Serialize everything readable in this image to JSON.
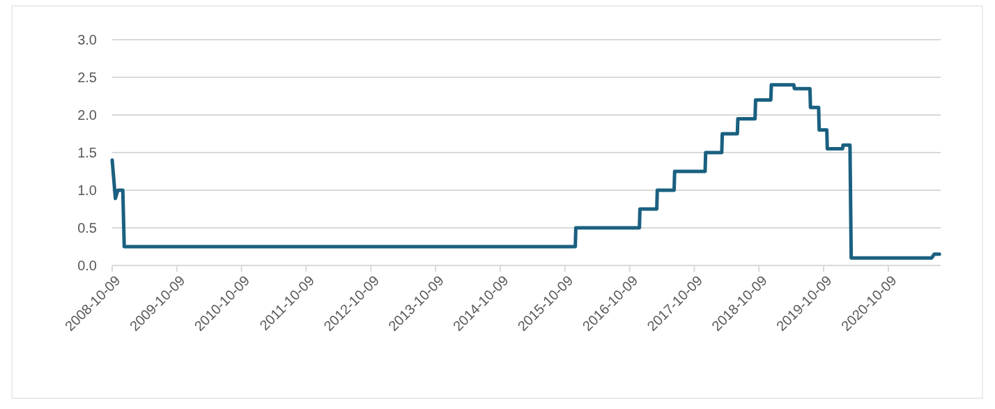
{
  "chart_data": {
    "type": "line",
    "x": [
      "2008-10-09",
      "2008-10-27",
      "2008-11-10",
      "2008-12-08",
      "2008-12-16",
      "2015-12-07",
      "2015-12-10",
      "2016-12-03",
      "2016-12-06",
      "2017-03-11",
      "2017-03-14",
      "2017-06-17",
      "2017-06-20",
      "2017-12-09",
      "2017-12-12",
      "2018-03-13",
      "2018-03-16",
      "2018-06-09",
      "2018-06-12",
      "2018-09-17",
      "2018-09-20",
      "2018-12-15",
      "2018-12-18",
      "2019-04-24",
      "2019-04-27",
      "2019-07-24",
      "2019-07-27",
      "2019-09-11",
      "2019-09-14",
      "2019-10-27",
      "2019-10-30",
      "2020-01-24",
      "2020-01-27",
      "2020-03-06",
      "2020-03-13",
      "2021-06-10",
      "2021-06-25",
      "2021-07-24"
    ],
    "series": [
      {
        "color": "#1a6080",
        "values": [
          1.4,
          0.89,
          1.0,
          1.0,
          0.25,
          0.25,
          0.5,
          0.5,
          0.75,
          0.75,
          1.0,
          1.0,
          1.25,
          1.25,
          1.5,
          1.5,
          1.75,
          1.75,
          1.95,
          1.95,
          2.2,
          2.2,
          2.4,
          2.4,
          2.35,
          2.35,
          2.1,
          2.1,
          1.8,
          1.8,
          1.55,
          1.55,
          1.6,
          1.6,
          0.1,
          0.1,
          0.15,
          0.15
        ]
      }
    ],
    "xlim": [
      "2008-10-09",
      "2021-07-31"
    ],
    "xticks": [
      "2008-10-09",
      "2009-10-09",
      "2010-10-09",
      "2011-10-09",
      "2012-10-09",
      "2013-10-09",
      "2014-10-09",
      "2015-10-09",
      "2016-10-09",
      "2017-10-09",
      "2018-10-09",
      "2019-10-09",
      "2020-10-09"
    ],
    "ylim": [
      0,
      3
    ],
    "yticks": [
      {
        "value": 0,
        "label": "0.0"
      },
      {
        "value": 0.5,
        "label": "0.5"
      },
      {
        "value": 1,
        "label": "1.0"
      },
      {
        "value": 1.5,
        "label": "1.5"
      },
      {
        "value": 2,
        "label": "2.0"
      },
      {
        "value": 2.5,
        "label": "2.5"
      },
      {
        "value": 3,
        "label": "3.0"
      }
    ],
    "grid": "y"
  }
}
